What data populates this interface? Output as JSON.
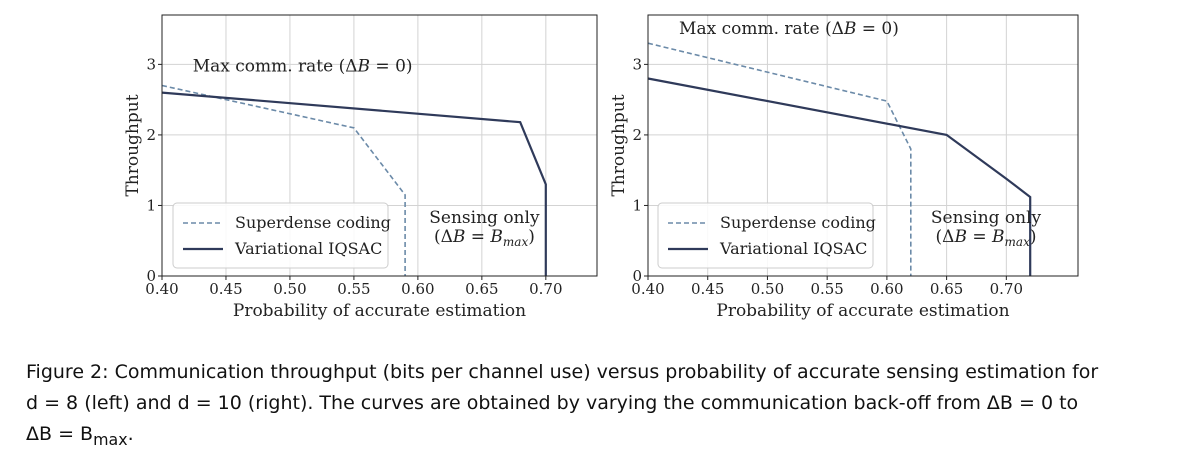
{
  "chart_data": [
    {
      "type": "line",
      "panel": "left",
      "xlabel": "Probability of accurate estimation",
      "ylabel": "Throughput",
      "xlim": [
        0.4,
        0.74
      ],
      "ylim": [
        0,
        3.7
      ],
      "xticks": [
        0.4,
        0.45,
        0.5,
        0.55,
        0.6,
        0.65,
        0.7
      ],
      "xtick_labels": [
        "0.40",
        "0.45",
        "0.50",
        "0.55",
        "0.60",
        "0.65",
        "0.70"
      ],
      "yticks": [
        0,
        1,
        2,
        3
      ],
      "ytick_labels": [
        "0",
        "1",
        "2",
        "3"
      ],
      "grid": true,
      "legend_position": "bottom-left",
      "series": [
        {
          "name": "Superdense coding",
          "style": "dashed",
          "color": "#6b8aa8",
          "x": [
            0.4,
            0.55,
            0.59,
            0.59
          ],
          "y": [
            2.7,
            2.1,
            1.15,
            0.0
          ]
        },
        {
          "name": "Variational IQSAC",
          "style": "solid",
          "color": "#2f3a5a",
          "x": [
            0.4,
            0.68,
            0.7,
            0.7
          ],
          "y": [
            2.6,
            2.18,
            1.3,
            0.0
          ]
        }
      ],
      "annotations": [
        {
          "text": "Max comm. rate (ΔB = 0)",
          "x": 0.424,
          "y": 2.9
        },
        {
          "text": "Sensing only",
          "x": 0.652,
          "y": 0.75
        },
        {
          "text": "(ΔB = B_max)",
          "x": 0.652,
          "y": 0.48
        }
      ]
    },
    {
      "type": "line",
      "panel": "right",
      "xlabel": "Probability of accurate estimation",
      "ylabel": "Throughput",
      "xlim": [
        0.4,
        0.76
      ],
      "ylim": [
        0,
        3.7
      ],
      "xticks": [
        0.4,
        0.45,
        0.5,
        0.55,
        0.6,
        0.65,
        0.7
      ],
      "xtick_labels": [
        "0.40",
        "0.45",
        "0.50",
        "0.55",
        "0.60",
        "0.65",
        "0.70"
      ],
      "yticks": [
        0,
        1,
        2,
        3
      ],
      "ytick_labels": [
        "0",
        "1",
        "2",
        "3"
      ],
      "grid": true,
      "legend_position": "bottom-left",
      "series": [
        {
          "name": "Superdense coding",
          "style": "dashed",
          "color": "#6b8aa8",
          "x": [
            0.4,
            0.6,
            0.62,
            0.62
          ],
          "y": [
            3.3,
            2.48,
            1.8,
            0.0
          ]
        },
        {
          "name": "Variational IQSAC",
          "style": "solid",
          "color": "#2f3a5a",
          "x": [
            0.4,
            0.65,
            0.7,
            0.72,
            0.72
          ],
          "y": [
            2.8,
            2.0,
            1.38,
            1.12,
            0.0
          ]
        }
      ],
      "annotations": [
        {
          "text": "Max comm. rate (ΔB = 0)",
          "x": 0.426,
          "y": 3.43
        },
        {
          "text": "Sensing only",
          "x": 0.683,
          "y": 0.75
        },
        {
          "text": "(ΔB = B_max)",
          "x": 0.683,
          "y": 0.48
        }
      ]
    }
  ],
  "caption": {
    "lead": "Figure 2:  Communication throughput (bits per channel use) versus probability of accurate sensing estimation for",
    "line2": "d = 8 (left) and d = 10 (right).  The curves are obtained by varying the communication back-off from ΔB = 0 to",
    "line3": "ΔB = B",
    "line3_sub": "max",
    "line3_end": "."
  },
  "colors": {
    "superdense": "#6b8aa8",
    "iqsac": "#2f3a5a",
    "grid": "#d3d3d3",
    "axis": "#222222"
  }
}
